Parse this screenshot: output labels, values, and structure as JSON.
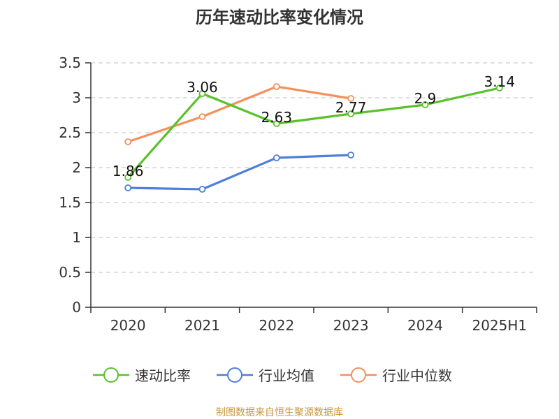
{
  "chart_data": {
    "type": "line",
    "title": "历年速动比率变化情况",
    "categories": [
      "2020",
      "2021",
      "2022",
      "2023",
      "2024",
      "2025H1"
    ],
    "ylim": [
      0,
      3.5
    ],
    "yticks": [
      "0",
      "0.5",
      "1",
      "1.5",
      "2",
      "2.5",
      "3",
      "3.5"
    ],
    "grid": true,
    "legend_position": "bottom",
    "series": [
      {
        "name": "速动比率",
        "color": "#5ac12a",
        "values": [
          1.86,
          3.06,
          2.63,
          2.77,
          2.9,
          3.14
        ],
        "labels": [
          "1.86",
          "3.06",
          "2.63",
          "2.77",
          "2.9",
          "3.14"
        ]
      },
      {
        "name": "行业均值",
        "color": "#4f7fd8",
        "values": [
          1.71,
          1.69,
          2.14,
          2.18,
          null,
          null
        ]
      },
      {
        "name": "行业中位数",
        "color": "#f4905c",
        "values": [
          2.37,
          2.73,
          3.16,
          2.99,
          null,
          null
        ]
      }
    ]
  },
  "source": {
    "text": "制图数据来自恒生聚源数据库",
    "color": "#c8963c"
  }
}
